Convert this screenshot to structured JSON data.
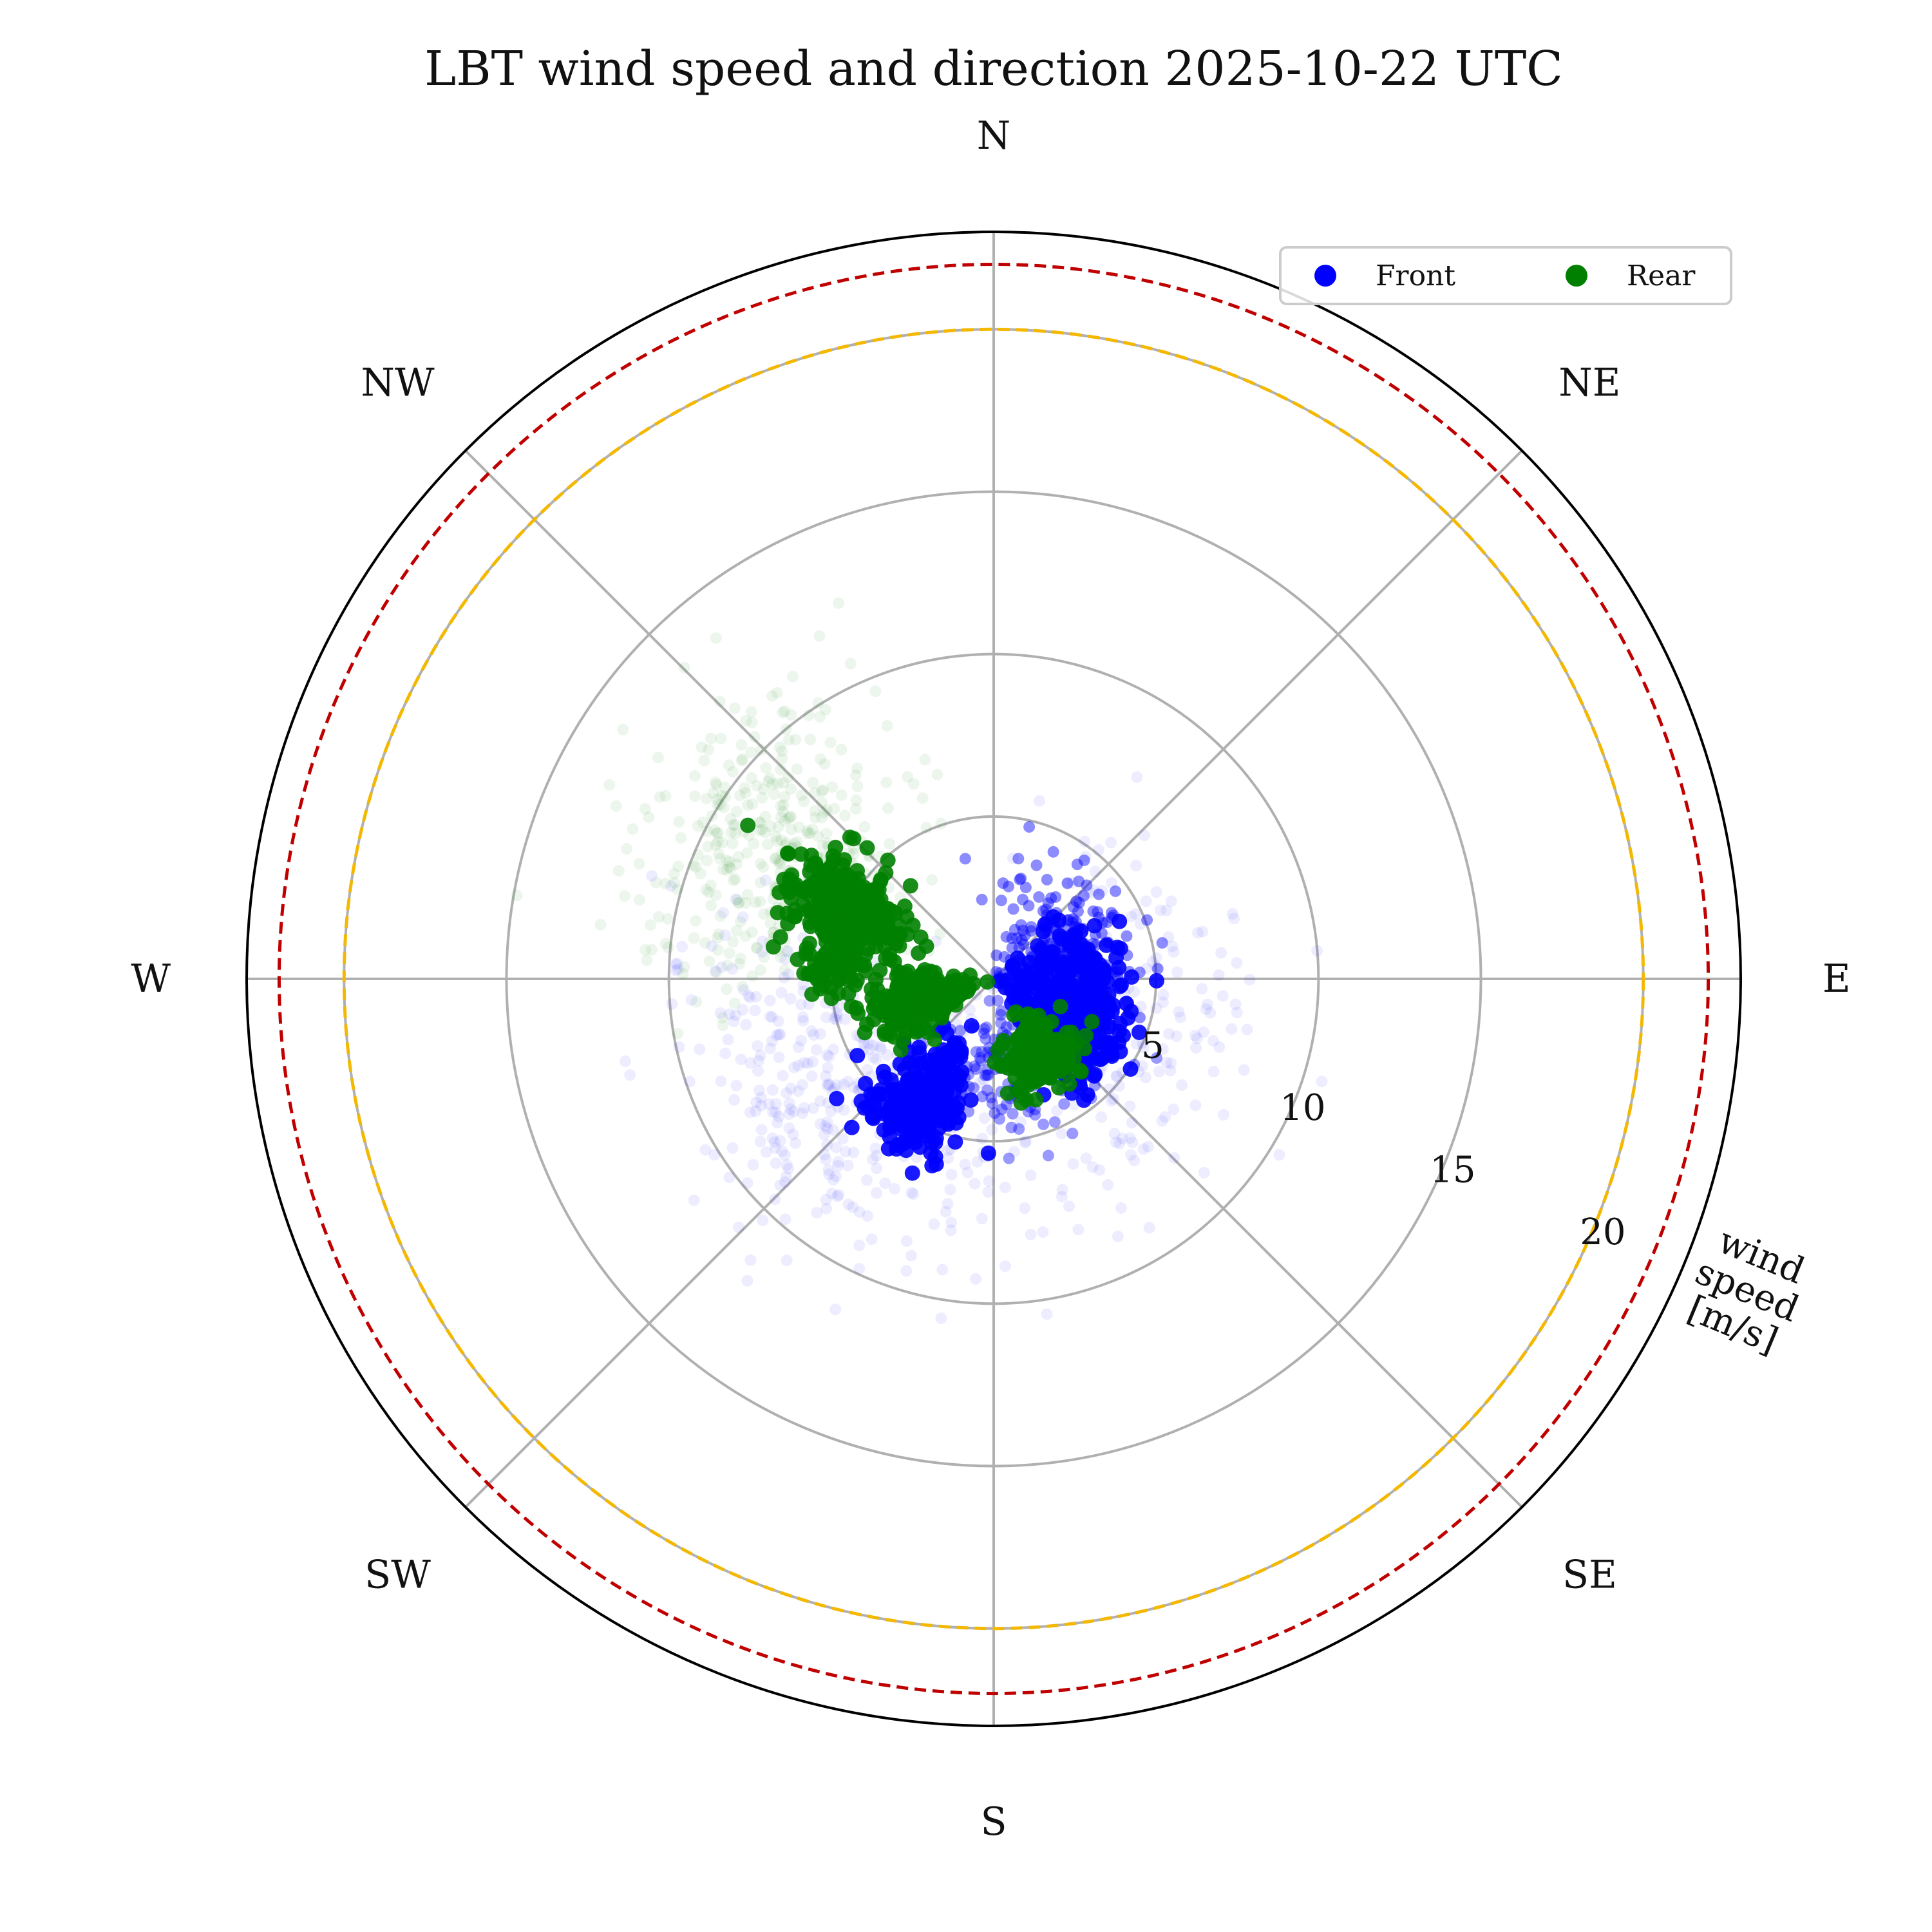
{
  "chart_data": {
    "type": "scatter",
    "projection": "polar",
    "title": "LBT wind speed and direction 2025-10-22 UTC",
    "theta_zero": "N",
    "theta_direction": "clockwise",
    "direction_labels": [
      "N",
      "NE",
      "E",
      "SE",
      "S",
      "SW",
      "W",
      "NW"
    ],
    "radial_axis": {
      "label": [
        "wind",
        "speed",
        "[m/s]"
      ],
      "ticks": [
        5,
        10,
        15,
        20
      ],
      "rlim": [
        0,
        23
      ],
      "label_angle_deg": 112.5
    },
    "grid": true,
    "reference_circles": [
      {
        "r": 20,
        "color": "#f5b800",
        "style": "dashed"
      },
      {
        "r": 22,
        "color": "#c00000",
        "style": "dashed"
      }
    ],
    "legend": {
      "location": "top-right",
      "columns": 2
    },
    "series": [
      {
        "name": "Front",
        "color": "#0000ff",
        "clusters": [
          {
            "dir_deg": 120,
            "speed": 2.8,
            "spread_deg": 14,
            "spread_speed": 0.9,
            "n": 260,
            "opacity": 0.9
          },
          {
            "dir_deg": 90,
            "speed": 2.6,
            "spread_deg": 18,
            "spread_speed": 0.8,
            "n": 160,
            "opacity": 0.9
          },
          {
            "dir_deg": 210,
            "speed": 4.3,
            "spread_deg": 9,
            "spread_speed": 0.9,
            "n": 240,
            "opacity": 0.9
          },
          {
            "dir_deg": 60,
            "speed": 2.5,
            "spread_deg": 28,
            "spread_speed": 1.2,
            "n": 200,
            "opacity": 0.45
          },
          {
            "dir_deg": 165,
            "speed": 3.2,
            "spread_deg": 25,
            "spread_speed": 1.2,
            "n": 150,
            "opacity": 0.4
          },
          {
            "dir_deg": 235,
            "speed": 6.5,
            "spread_deg": 25,
            "spread_speed": 2.2,
            "n": 350,
            "opacity": 0.07
          },
          {
            "dir_deg": 110,
            "speed": 5.0,
            "spread_deg": 40,
            "spread_speed": 2.0,
            "n": 200,
            "opacity": 0.07
          }
        ]
      },
      {
        "name": "Rear",
        "color": "#008000",
        "clusters": [
          {
            "dir_deg": 295,
            "speed": 5.1,
            "spread_deg": 8,
            "spread_speed": 1.0,
            "n": 280,
            "opacity": 0.9
          },
          {
            "dir_deg": 255,
            "speed": 2.4,
            "spread_deg": 10,
            "spread_speed": 0.8,
            "n": 220,
            "opacity": 0.9
          },
          {
            "dir_deg": 275,
            "speed": 5.0,
            "spread_deg": 6,
            "spread_speed": 0.5,
            "n": 60,
            "opacity": 0.9
          },
          {
            "dir_deg": 150,
            "speed": 2.7,
            "spread_deg": 12,
            "spread_speed": 0.5,
            "n": 200,
            "opacity": 0.9
          },
          {
            "dir_deg": 300,
            "speed": 8.0,
            "spread_deg": 15,
            "spread_speed": 2.2,
            "n": 420,
            "opacity": 0.07
          }
        ]
      }
    ]
  }
}
